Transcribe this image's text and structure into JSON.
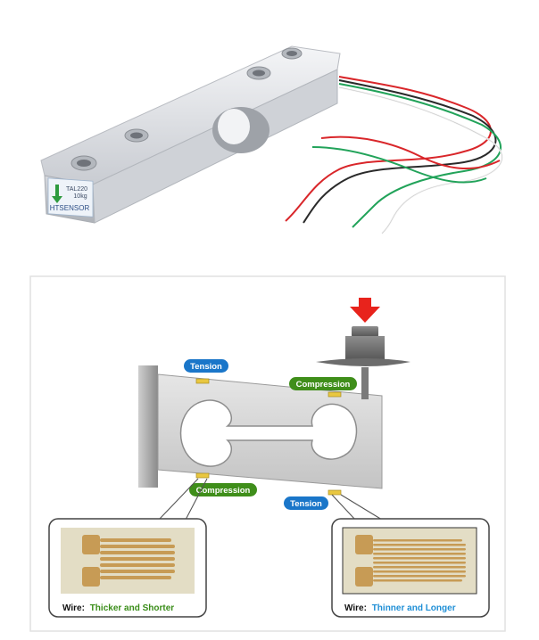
{
  "load_cell_photo": {
    "label_line1": "TAL220",
    "label_line2": "10kg",
    "brand": "HTSENSOR"
  },
  "diagram": {
    "tension_top": "Tension",
    "compression_top": "Compression",
    "compression_bottom": "Compression",
    "tension_bottom": "Tension"
  },
  "gauges": {
    "left": {
      "prefix": "Wire:",
      "desc": "Thicker and Shorter"
    },
    "right": {
      "prefix": "Wire:",
      "desc": "Thinner and Longer"
    }
  },
  "colors": {
    "tension": "#1a76c9",
    "compression": "#3f8e1a",
    "arrow": "#e8231c",
    "gauge_pad": "#c79b55",
    "left_desc": "#3a8d19",
    "right_desc": "#1f8fd6"
  }
}
